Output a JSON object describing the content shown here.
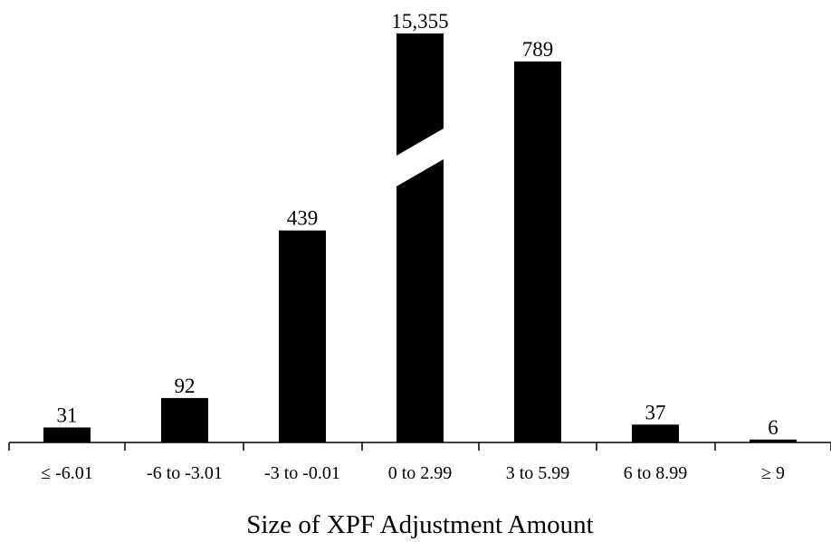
{
  "chart_data": {
    "type": "bar",
    "xlabel": "Size of XPF Adjustment Amount",
    "categories": [
      "≤ -6.01",
      "-6 to -3.01",
      "-3 to -0.01",
      "0 to 2.99",
      "3 to 5.99",
      "6 to 8.99",
      "≥ 9"
    ],
    "values": [
      31,
      92,
      439,
      15355,
      789,
      37,
      6
    ],
    "value_labels": [
      "31",
      "92",
      "439",
      "15,355",
      "789",
      "37",
      "6"
    ],
    "broken_bars": [
      "0 to 2.99"
    ],
    "y_axis_visible": false,
    "grid": false,
    "colors": {
      "bar": "#000000",
      "background": "#ffffff"
    }
  }
}
